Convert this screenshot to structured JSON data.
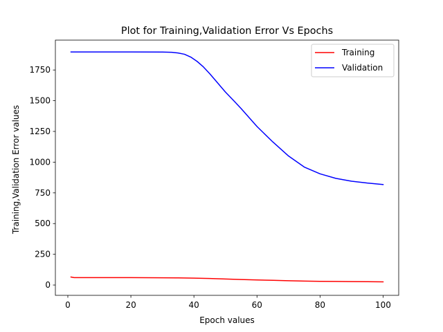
{
  "chart_data": {
    "type": "line",
    "title": "Plot for Training,Validation Error Vs Epochs",
    "xlabel": "Epoch values",
    "ylabel": "Training,Validation Error values",
    "xlim": [
      -3.95,
      104.95
    ],
    "ylim": [
      -84.1,
      1993.1
    ],
    "xticks": [
      0,
      20,
      40,
      60,
      80,
      100
    ],
    "xtick_labels": [
      "0",
      "20",
      "40",
      "60",
      "80",
      "100"
    ],
    "yticks": [
      0,
      250,
      500,
      750,
      1000,
      1250,
      1500,
      1750
    ],
    "ytick_labels": [
      "0",
      "250",
      "500",
      "750",
      "1000",
      "1250",
      "1500",
      "1750"
    ],
    "grid": false,
    "legend_position": "top-right",
    "series": [
      {
        "name": "Training",
        "color": "#ff0000",
        "x": [
          1,
          2,
          5,
          10,
          20,
          30,
          35,
          40,
          45,
          50,
          55,
          60,
          65,
          70,
          75,
          80,
          85,
          90,
          95,
          100
        ],
        "y": [
          65,
          60,
          60,
          60,
          60,
          59,
          58,
          56,
          53,
          49,
          45,
          41,
          38,
          35,
          32,
          30,
          29,
          28,
          27,
          26
        ]
      },
      {
        "name": "Validation",
        "color": "#0000ff",
        "x": [
          1,
          5,
          10,
          20,
          30,
          33,
          35,
          37,
          39,
          41,
          43,
          45,
          47,
          50,
          53,
          55,
          60,
          65,
          70,
          75,
          80,
          85,
          90,
          95,
          100
        ],
        "y": [
          1897,
          1897,
          1897,
          1897,
          1896,
          1894,
          1888,
          1878,
          1855,
          1820,
          1775,
          1720,
          1660,
          1570,
          1490,
          1435,
          1290,
          1165,
          1050,
          960,
          905,
          868,
          845,
          830,
          818
        ]
      }
    ]
  }
}
